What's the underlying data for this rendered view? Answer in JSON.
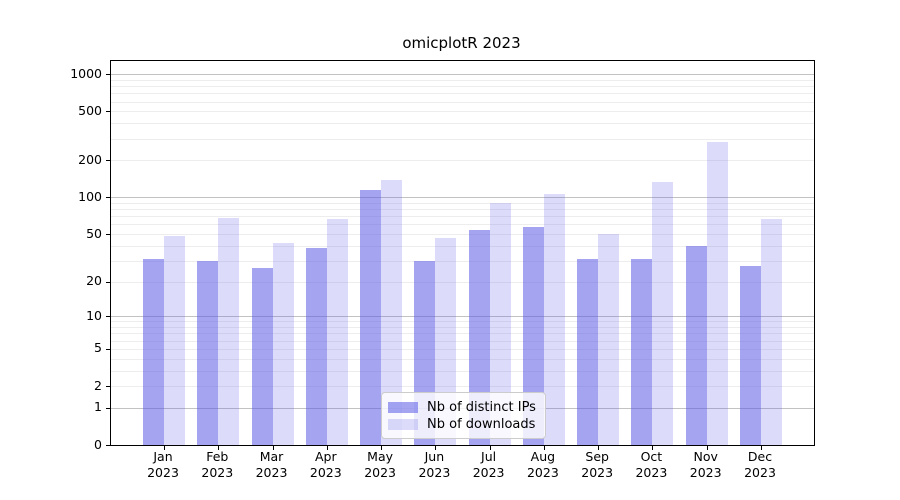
{
  "chart_data": {
    "type": "bar",
    "title": "omicplotR 2023",
    "categories": [
      "Jan 2023",
      "Feb 2023",
      "Mar 2023",
      "Apr 2023",
      "May 2023",
      "Jun 2023",
      "Jul 2023",
      "Aug 2023",
      "Sep 2023",
      "Oct 2023",
      "Nov 2023",
      "Dec 2023"
    ],
    "series": [
      {
        "name": "Nb of distinct IPs",
        "key": "distinct_ips",
        "values": [
          31,
          30,
          26,
          38,
          114,
          30,
          54,
          57,
          31,
          31,
          40,
          27
        ]
      },
      {
        "name": "Nb of downloads",
        "key": "downloads",
        "values": [
          48,
          68,
          42,
          67,
          138,
          46,
          90,
          107,
          50,
          134,
          285,
          67
        ]
      }
    ],
    "xlabel": "",
    "ylabel": "",
    "yscale": "log1p",
    "yticks": [
      1000,
      500,
      200,
      100,
      50,
      20,
      10,
      5,
      2,
      1,
      0
    ],
    "ylim": [
      0,
      1285
    ],
    "grid": "horizontal, major at powers of 10, minor at 2-9 per decade",
    "legend_position": "lower center inside",
    "colors": {
      "distinct_ips": "rgba(90,90,230,0.55)",
      "downloads": "rgba(90,90,230,0.21)",
      "grid_major": "#c2c2c2",
      "grid_minor": "#ededed"
    }
  }
}
